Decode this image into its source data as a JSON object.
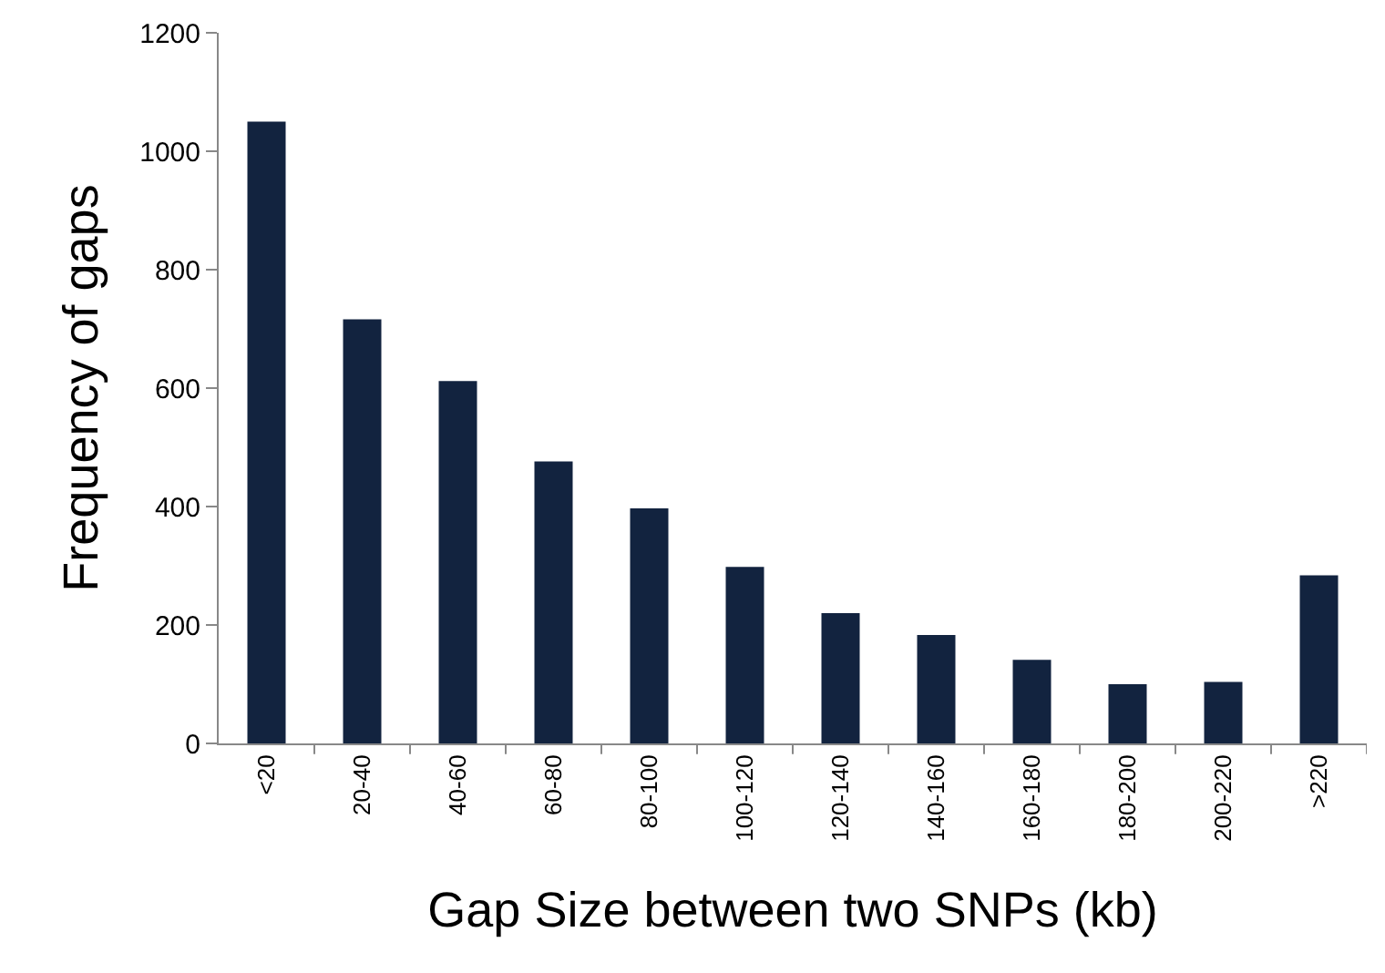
{
  "chart_data": {
    "type": "bar",
    "xlabel": "Gap Size between two SNPs (kb)",
    "ylabel": "Frequency of gaps",
    "categories": [
      "<20",
      "20-40",
      "40-60",
      "60-80",
      "80-100",
      "100-120",
      "120-140",
      "140-160",
      "160-180",
      "180-200",
      "200-220",
      ">220"
    ],
    "values": [
      1050,
      716,
      612,
      476,
      397,
      298,
      220,
      183,
      141,
      100,
      104,
      284
    ],
    "color": "#12233f",
    "ylim": [
      0,
      1200
    ],
    "yticks": [
      0,
      200,
      400,
      600,
      800,
      1000,
      1200
    ],
    "grid": false,
    "legend": false
  }
}
